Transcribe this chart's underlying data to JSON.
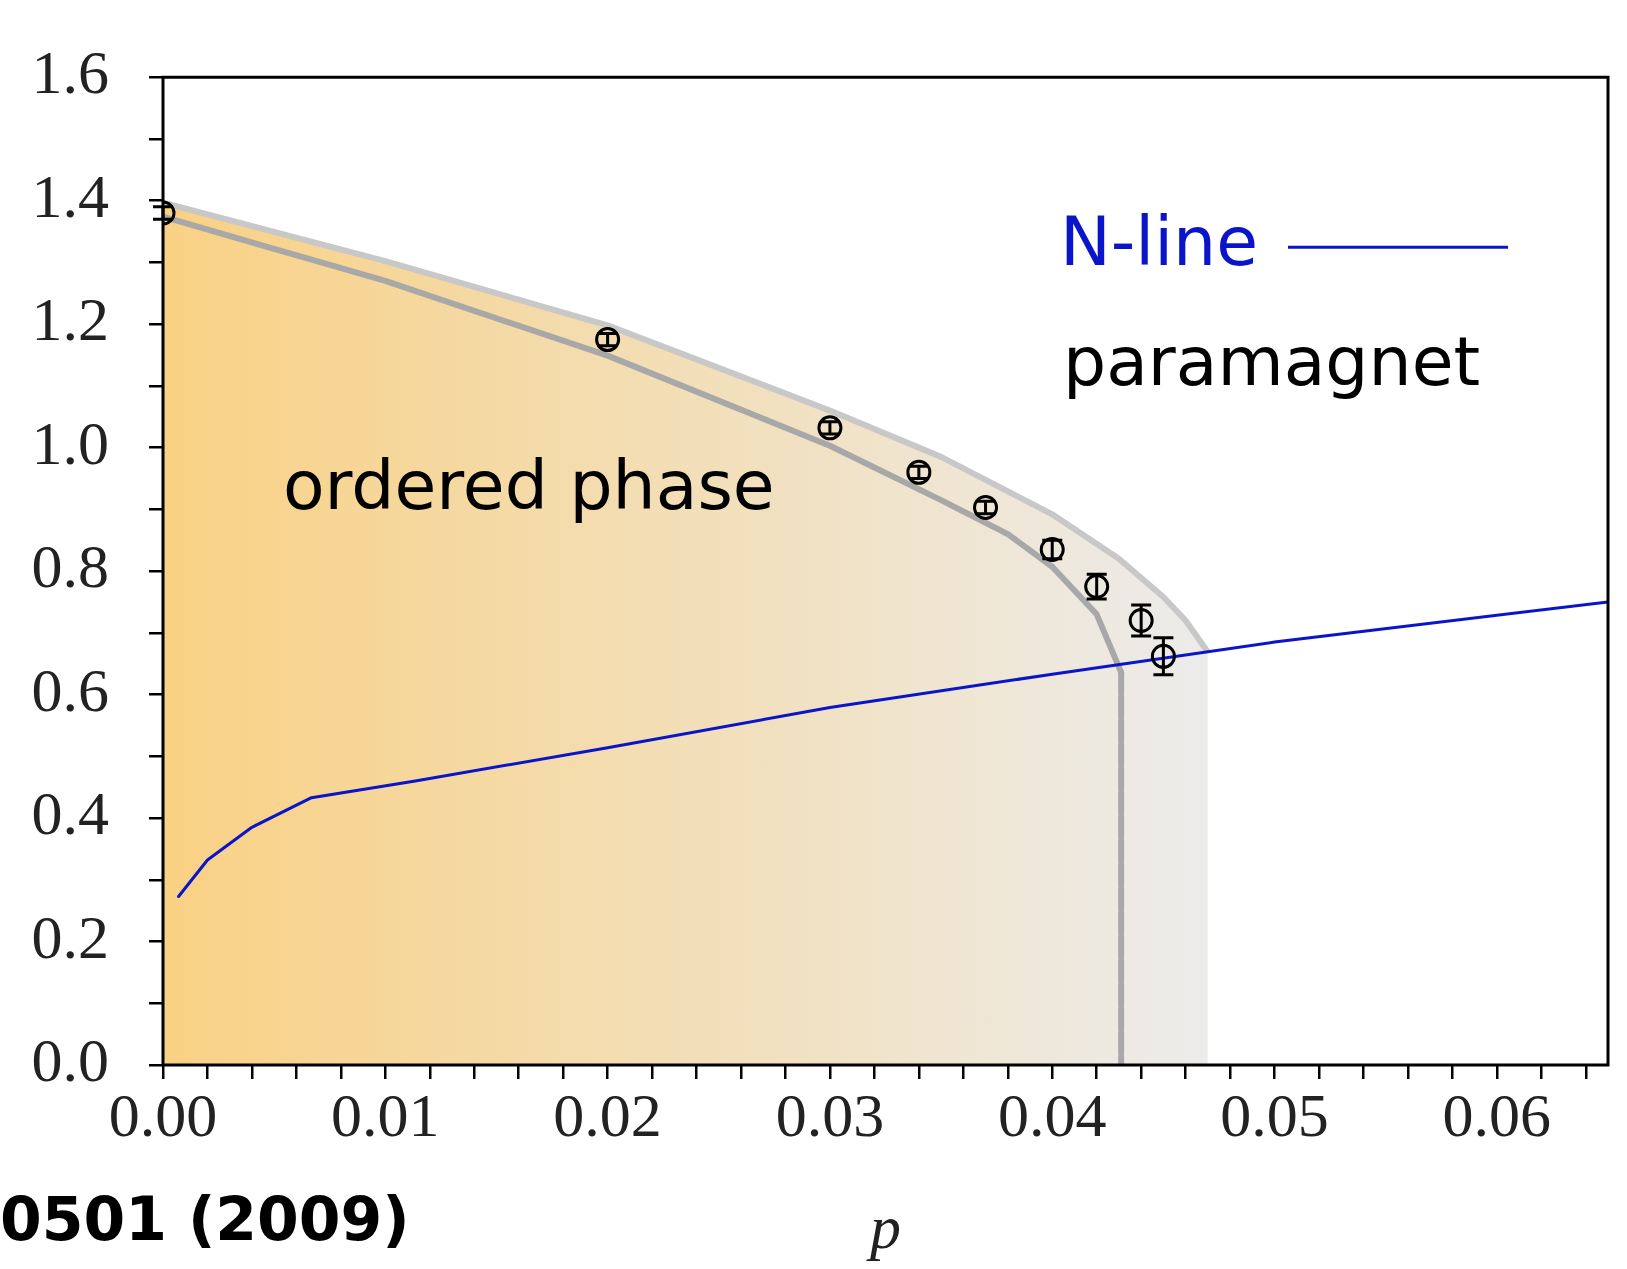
{
  "chart_data": {
    "type": "scatter",
    "xlabel": "p",
    "xlim": [
      0,
      0.065
    ],
    "ylim": [
      0,
      1.6
    ],
    "xticks": [
      {
        "value": 0,
        "label": "0.00"
      },
      {
        "value": 0.002,
        "label": null
      },
      {
        "value": 0.004,
        "label": null
      },
      {
        "value": 0.006,
        "label": null
      },
      {
        "value": 0.008,
        "label": null
      },
      {
        "value": 0.01,
        "label": "0.01"
      },
      {
        "value": 0.012,
        "label": null
      },
      {
        "value": 0.014,
        "label": null
      },
      {
        "value": 0.016,
        "label": null
      },
      {
        "value": 0.018,
        "label": null
      },
      {
        "value": 0.02,
        "label": "0.02"
      },
      {
        "value": 0.022,
        "label": null
      },
      {
        "value": 0.024,
        "label": null
      },
      {
        "value": 0.026,
        "label": null
      },
      {
        "value": 0.028,
        "label": null
      },
      {
        "value": 0.03,
        "label": "0.03"
      },
      {
        "value": 0.032,
        "label": null
      },
      {
        "value": 0.034,
        "label": null
      },
      {
        "value": 0.036,
        "label": null
      },
      {
        "value": 0.038,
        "label": null
      },
      {
        "value": 0.04,
        "label": "0.04"
      },
      {
        "value": 0.042,
        "label": null
      },
      {
        "value": 0.044,
        "label": null
      },
      {
        "value": 0.046,
        "label": null
      },
      {
        "value": 0.048,
        "label": null
      },
      {
        "value": 0.05,
        "label": "0.05"
      },
      {
        "value": 0.052,
        "label": null
      },
      {
        "value": 0.054,
        "label": null
      },
      {
        "value": 0.056,
        "label": null
      },
      {
        "value": 0.058,
        "label": null
      },
      {
        "value": 0.06,
        "label": "0.06"
      },
      {
        "value": 0.062,
        "label": null
      },
      {
        "value": 0.064,
        "label": null
      }
    ],
    "yticks": [
      {
        "value": 0,
        "label": "0.0"
      },
      {
        "value": 0.1,
        "label": null
      },
      {
        "value": 0.2,
        "label": "0.2"
      },
      {
        "value": 0.3,
        "label": null
      },
      {
        "value": 0.4,
        "label": "0.4"
      },
      {
        "value": 0.5,
        "label": null
      },
      {
        "value": 0.6,
        "label": "0.6"
      },
      {
        "value": 0.7,
        "label": null
      },
      {
        "value": 0.8,
        "label": "0.8"
      },
      {
        "value": 0.9,
        "label": null
      },
      {
        "value": 1.0,
        "label": "1.0"
      },
      {
        "value": 1.1,
        "label": null
      },
      {
        "value": 1.2,
        "label": "1.2"
      },
      {
        "value": 1.3,
        "label": null
      },
      {
        "value": 1.4,
        "label": "1.4"
      },
      {
        "value": 1.5,
        "label": null
      },
      {
        "value": 1.6,
        "label": "1.6"
      }
    ],
    "legend": "top right",
    "annotations": [
      "ordered phase",
      "paramagnet",
      "0501 (2009)"
    ],
    "series": [
      {
        "type": "area",
        "color": "#c8c8c8",
        "x": [
          0,
          0.01,
          0.02,
          0.03,
          0.035,
          0.04,
          0.043,
          0.045,
          0.046,
          0.047
        ],
        "values": [
          1.397,
          1.302,
          1.198,
          1.06,
          0.985,
          0.892,
          0.82,
          0.758,
          0.72,
          0.669
        ]
      },
      {
        "type": "line",
        "color": "#a8a8a8",
        "x": [
          0,
          0.01,
          0.02,
          0.03,
          0.035,
          0.038,
          0.04,
          0.042,
          0.0431,
          0.0431
        ],
        "values": [
          1.374,
          1.27,
          1.149,
          1.003,
          0.915,
          0.86,
          0.807,
          0.73,
          0.636,
          0
        ]
      },
      {
        "type": "line",
        "name": "N-line",
        "color": "#0a14c8",
        "x": [
          0.0007,
          0.002,
          0.004,
          0.00668,
          0.01135,
          0.02,
          0.03,
          0.04,
          0.05,
          0.065
        ],
        "values": [
          0.273,
          0.332,
          0.385,
          0.433,
          0.46,
          0.514,
          0.579,
          0.633,
          0.685,
          0.75
        ]
      },
      {
        "type": "scatter",
        "marker": "circle",
        "color": "#000000",
        "x": [
          0,
          0.02,
          0.03,
          0.034,
          0.037,
          0.04,
          0.042,
          0.044,
          0.045
        ],
        "values": [
          1.38,
          1.175,
          1.032,
          0.96,
          0.903,
          0.835,
          0.775,
          0.72,
          0.662
        ],
        "errors": [
          0.01,
          0.01,
          0.01,
          0.01,
          0.01,
          0.015,
          0.02,
          0.025,
          0.03
        ]
      }
    ]
  }
}
